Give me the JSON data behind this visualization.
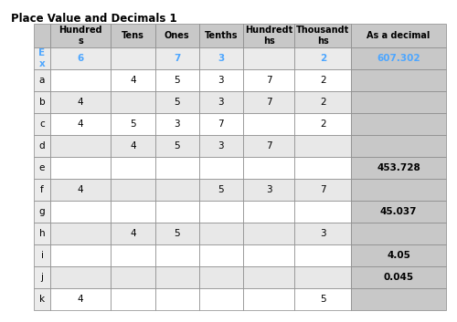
{
  "title": "Place Value and Decimals 1",
  "col_headers": [
    "Hundred\ns",
    "Tens",
    "Ones",
    "Tenths",
    "Hundredt\nhs",
    "Thousandt\nhs",
    "As a decimal"
  ],
  "row_labels": [
    "E\nx",
    "a",
    "b",
    "c",
    "d",
    "e",
    "f",
    "g",
    "h",
    "i",
    "j",
    "k"
  ],
  "rows": [
    [
      "6",
      "",
      "7",
      "3",
      "",
      "2",
      "607.302"
    ],
    [
      "",
      "4",
      "5",
      "3",
      "7",
      "2",
      ""
    ],
    [
      "4",
      "",
      "5",
      "3",
      "7",
      "2",
      ""
    ],
    [
      "4",
      "5",
      "3",
      "7",
      "",
      "2",
      ""
    ],
    [
      "",
      "4",
      "5",
      "3",
      "7",
      "",
      ""
    ],
    [
      "",
      "",
      "",
      "",
      "",
      "",
      "453.728"
    ],
    [
      "4",
      "",
      "",
      "5",
      "3",
      "7",
      ""
    ],
    [
      "",
      "",
      "",
      "",
      "",
      "",
      "45.037"
    ],
    [
      "",
      "4",
      "5",
      "",
      "",
      "3",
      ""
    ],
    [
      "",
      "",
      "",
      "",
      "",
      "",
      "4.05"
    ],
    [
      "",
      "",
      "",
      "",
      "",
      "",
      "0.045"
    ],
    [
      "4",
      "",
      "",
      "",
      "",
      "5",
      ""
    ]
  ],
  "header_bg": "#c8c8c8",
  "row_label_bg_odd": "#f0f0f0",
  "row_label_bg_even": "#f0f0f0",
  "ex_row_bg": "#ebebeb",
  "answer_col_bg": "#c8c8c8",
  "white_row_bg": "#ffffff",
  "gray_row_bg": "#e8e8e8",
  "ex_color": "#4da6ff",
  "normal_color": "#000000",
  "title_fontsize": 8.5,
  "cell_fontsize": 7.5,
  "header_fontsize": 7.0
}
